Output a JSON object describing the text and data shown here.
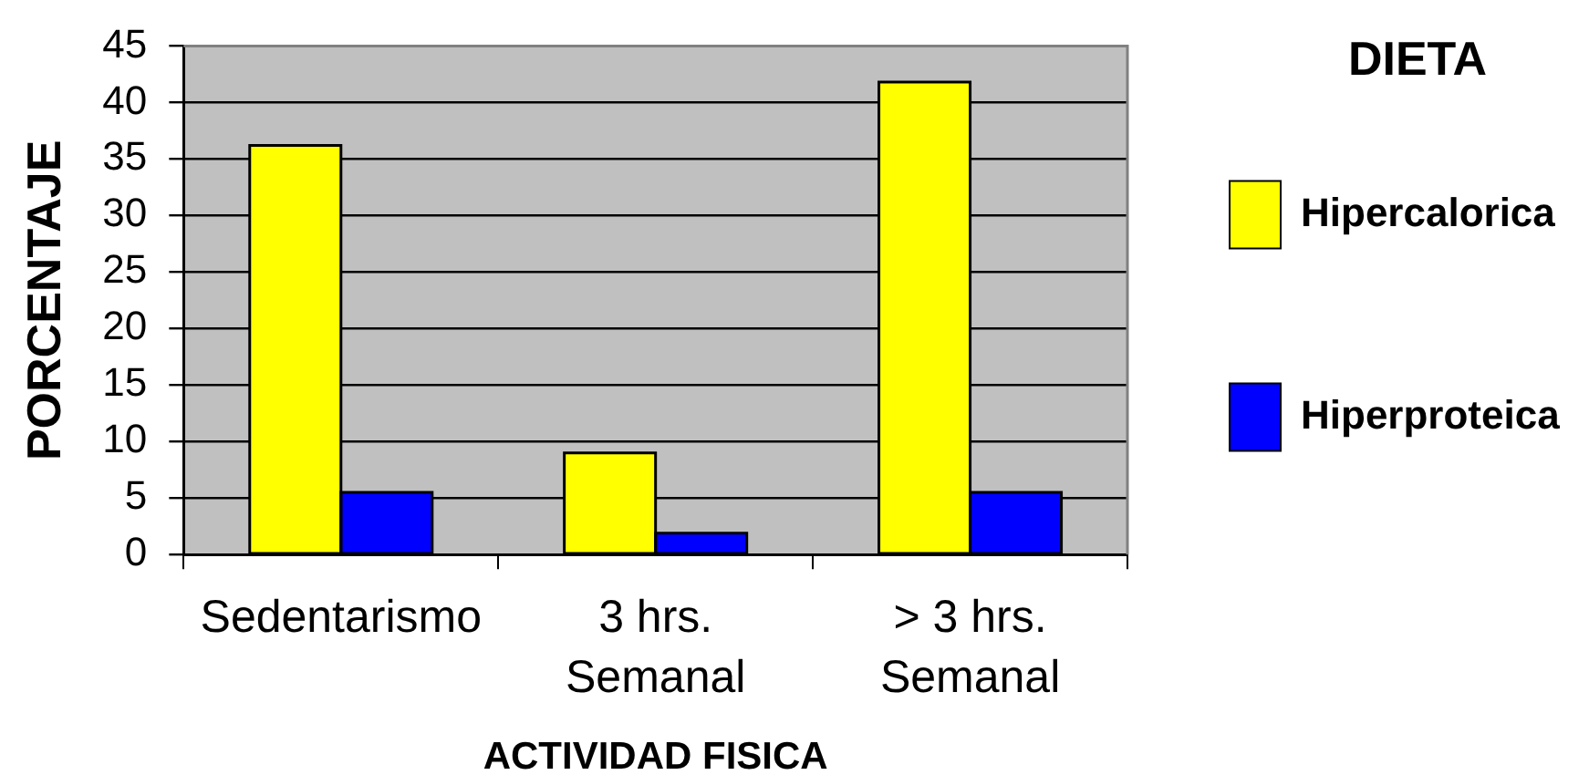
{
  "chart_data": {
    "type": "bar",
    "xlabel": "ACTIVIDAD FISICA",
    "ylabel": "PORCENTAJE",
    "legend_title": "DIETA",
    "categories": [
      "Sedentarismo",
      "3 hrs. Semanal",
      "> 3 hrs. Semanal"
    ],
    "series": [
      {
        "name": "Hipercalorica",
        "color": "#ffff00",
        "values": [
          36.2,
          9,
          41.8
        ]
      },
      {
        "name": "Hiperproteica",
        "color": "#0000ff",
        "values": [
          5.5,
          1.9,
          5.5
        ]
      }
    ],
    "ylim": [
      0,
      45
    ],
    "yticks": [
      0,
      5,
      10,
      15,
      20,
      25,
      30,
      35,
      40,
      45
    ],
    "grid": "y",
    "legend": "right"
  }
}
